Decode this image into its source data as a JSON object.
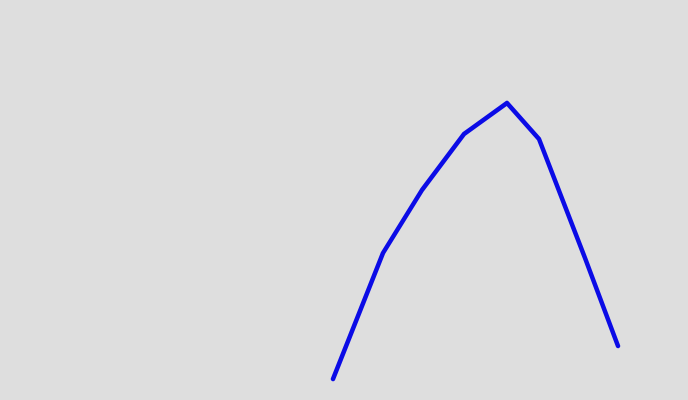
{
  "colors": {
    "background": "#dedede",
    "stroke": "#0b0be6"
  }
}
